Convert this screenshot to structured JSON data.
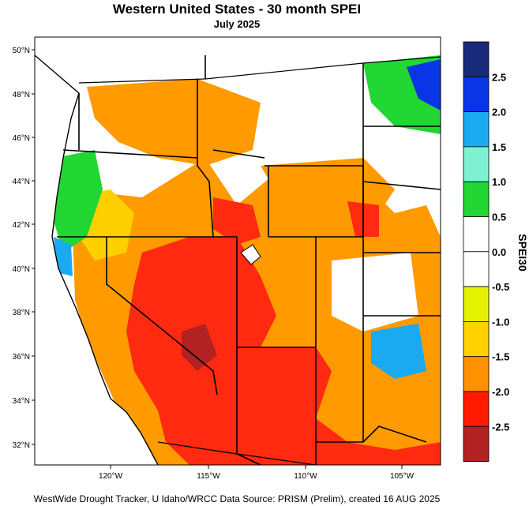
{
  "title": "Western United States - 30 month SPEI",
  "subtitle": "July 2025",
  "credit": "WestWide Drought Tracker, U Idaho/WRCC Data Source: PRISM (Prelim), created 16 AUG 2025",
  "map": {
    "lat_labels": [
      "50°N",
      "48°N",
      "46°N",
      "44°N",
      "42°N",
      "40°N",
      "38°N",
      "36°N",
      "34°N",
      "32°N"
    ],
    "lon_labels": [
      "120°W",
      "115°W",
      "110°W",
      "105°W"
    ]
  },
  "colorbar": {
    "title": "SPEI30",
    "labels": [
      "2.5",
      "2.0",
      "1.5",
      "1.0",
      "0.5",
      "0.0",
      "-0.5",
      "-1.0",
      "-1.5",
      "-2.0",
      "-2.5"
    ],
    "colors": [
      "#1a2a7a",
      "#0a35e6",
      "#1aaaf2",
      "#7ef2d0",
      "#22d633",
      "#ffffff",
      "#ffffff",
      "#e4f200",
      "#ffd200",
      "#ff9000",
      "#ff1a00",
      "#b22222"
    ]
  },
  "colors": {
    "ocean": "#ffffff",
    "dry_severe": "#ff2a10",
    "dry_moderate": "#ff9a00",
    "dry_mild": "#ffd000",
    "neutral": "#ffffff",
    "wet_mild": "#22d633",
    "wet_moderate": "#1aaaf2",
    "wet_high": "#0a35e6",
    "extreme_dry": "#b22222"
  }
}
